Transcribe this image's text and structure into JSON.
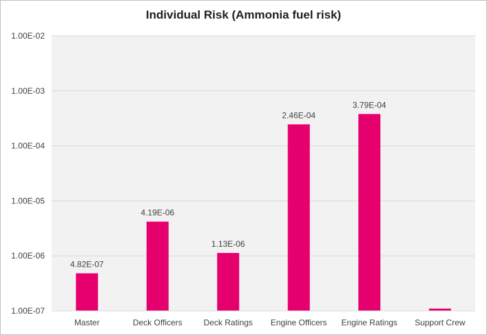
{
  "chart_data": {
    "type": "bar",
    "title": "Individual Risk (Ammonia fuel risk)",
    "xlabel": "",
    "ylabel": "",
    "yscale": "log",
    "ylim": [
      1e-07,
      0.01
    ],
    "yticks": [
      1e-07,
      1e-06,
      1e-05,
      0.0001,
      0.001,
      0.01
    ],
    "ytick_labels": [
      "1.00E-07",
      "1.00E-06",
      "1.00E-05",
      "1.00E-04",
      "1.00E-03",
      "1.00E-02"
    ],
    "categories": [
      "Master",
      "Deck Officers",
      "Deck Ratings",
      "Engine Officers",
      "Engine Ratings",
      "Support Crew"
    ],
    "values": [
      4.82e-07,
      4.19e-06,
      1.13e-06,
      0.000246,
      0.000379,
      1.1e-07
    ],
    "data_labels": [
      "4.82E-07",
      "4.19E-06",
      "1.13E-06",
      "2.46E-04",
      "3.79E-04",
      ""
    ],
    "grid": true,
    "legend": "none",
    "bar_color": "#e6006e",
    "plot_background": "#f2f2f2",
    "grid_color": "#d9d9d9"
  }
}
